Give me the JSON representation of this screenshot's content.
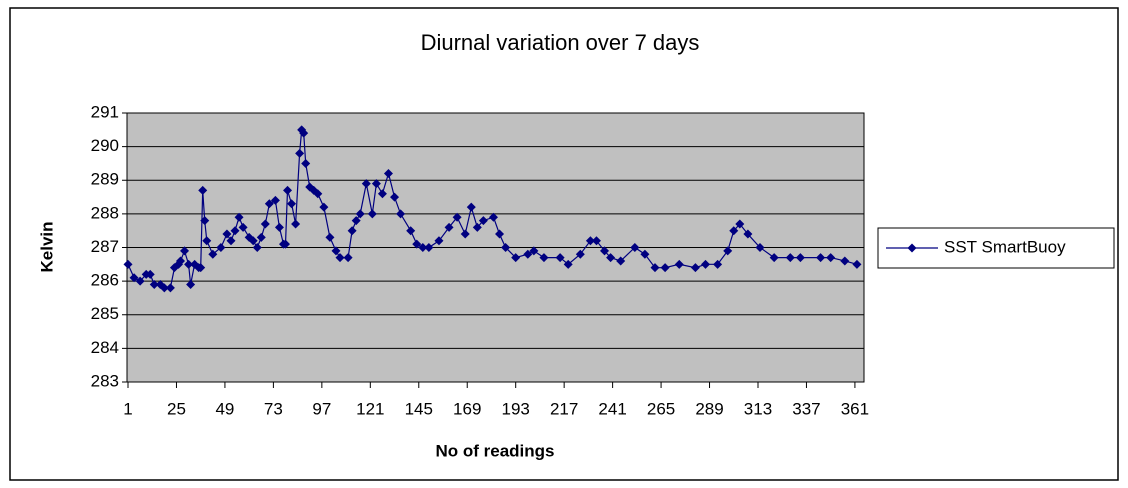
{
  "chart_data": {
    "type": "line",
    "title": "Diurnal variation over 7 days",
    "x_label": "No of readings",
    "y_label": "Kelvin",
    "legend": "right",
    "grid": true,
    "xlim": [
      0.5,
      365.5
    ],
    "xticks": [
      1,
      25,
      49,
      73,
      97,
      121,
      145,
      169,
      193,
      217,
      241,
      265,
      289,
      313,
      337,
      361
    ],
    "ylim": [
      283,
      291
    ],
    "yticks": [
      283,
      284,
      285,
      286,
      287,
      288,
      289,
      290,
      291
    ],
    "x": [
      1,
      4,
      7,
      10,
      12,
      14,
      17,
      19,
      22,
      24,
      26,
      27,
      29,
      31,
      32,
      34,
      36,
      37,
      38,
      39,
      40,
      43,
      47,
      50,
      52,
      54,
      56,
      58,
      61,
      63,
      65,
      67,
      69,
      71,
      74,
      76,
      78,
      79,
      80,
      82,
      84,
      86,
      87,
      88,
      89,
      91,
      93,
      95,
      98,
      101,
      104,
      106,
      110,
      112,
      114,
      116,
      119,
      122,
      124,
      127,
      130,
      133,
      136,
      141,
      144,
      147,
      150,
      155,
      160,
      164,
      168,
      171,
      174,
      177,
      182,
      185,
      188,
      193,
      199,
      202,
      207,
      215,
      219,
      225,
      230,
      233,
      237,
      240,
      245,
      252,
      257,
      262,
      267,
      274,
      282,
      287,
      293,
      298,
      301,
      304,
      308,
      314,
      321,
      329,
      334,
      344,
      349,
      356,
      362
    ],
    "series": [
      {
        "name": "SST SmartBuoy",
        "color": "#000080",
        "values": [
          286.5,
          286.1,
          286.0,
          286.2,
          286.2,
          285.9,
          285.9,
          285.8,
          285.8,
          286.4,
          286.5,
          286.6,
          286.9,
          286.5,
          285.9,
          286.5,
          286.4,
          286.4,
          288.7,
          287.8,
          287.2,
          286.8,
          287.0,
          287.4,
          287.2,
          287.5,
          287.9,
          287.6,
          287.3,
          287.2,
          287.0,
          287.3,
          287.7,
          288.3,
          288.4,
          287.6,
          287.1,
          287.1,
          288.7,
          288.3,
          287.7,
          289.8,
          290.5,
          290.4,
          289.5,
          288.8,
          288.7,
          288.6,
          288.2,
          287.3,
          286.9,
          286.7,
          286.7,
          287.5,
          287.8,
          288.0,
          288.9,
          288.0,
          288.9,
          288.6,
          289.2,
          288.5,
          288.0,
          287.5,
          287.1,
          287.0,
          287.0,
          287.2,
          287.6,
          287.9,
          287.4,
          288.2,
          287.6,
          287.8,
          287.9,
          287.4,
          287.0,
          286.7,
          286.8,
          286.9,
          286.7,
          286.7,
          286.5,
          286.8,
          287.2,
          287.2,
          286.9,
          286.7,
          286.6,
          287.0,
          286.8,
          286.4,
          286.4,
          286.5,
          286.4,
          286.5,
          286.5,
          286.9,
          287.5,
          287.7,
          287.4,
          287.0,
          286.7,
          286.7,
          286.7,
          286.7,
          286.7,
          286.6,
          286.5
        ]
      }
    ]
  }
}
